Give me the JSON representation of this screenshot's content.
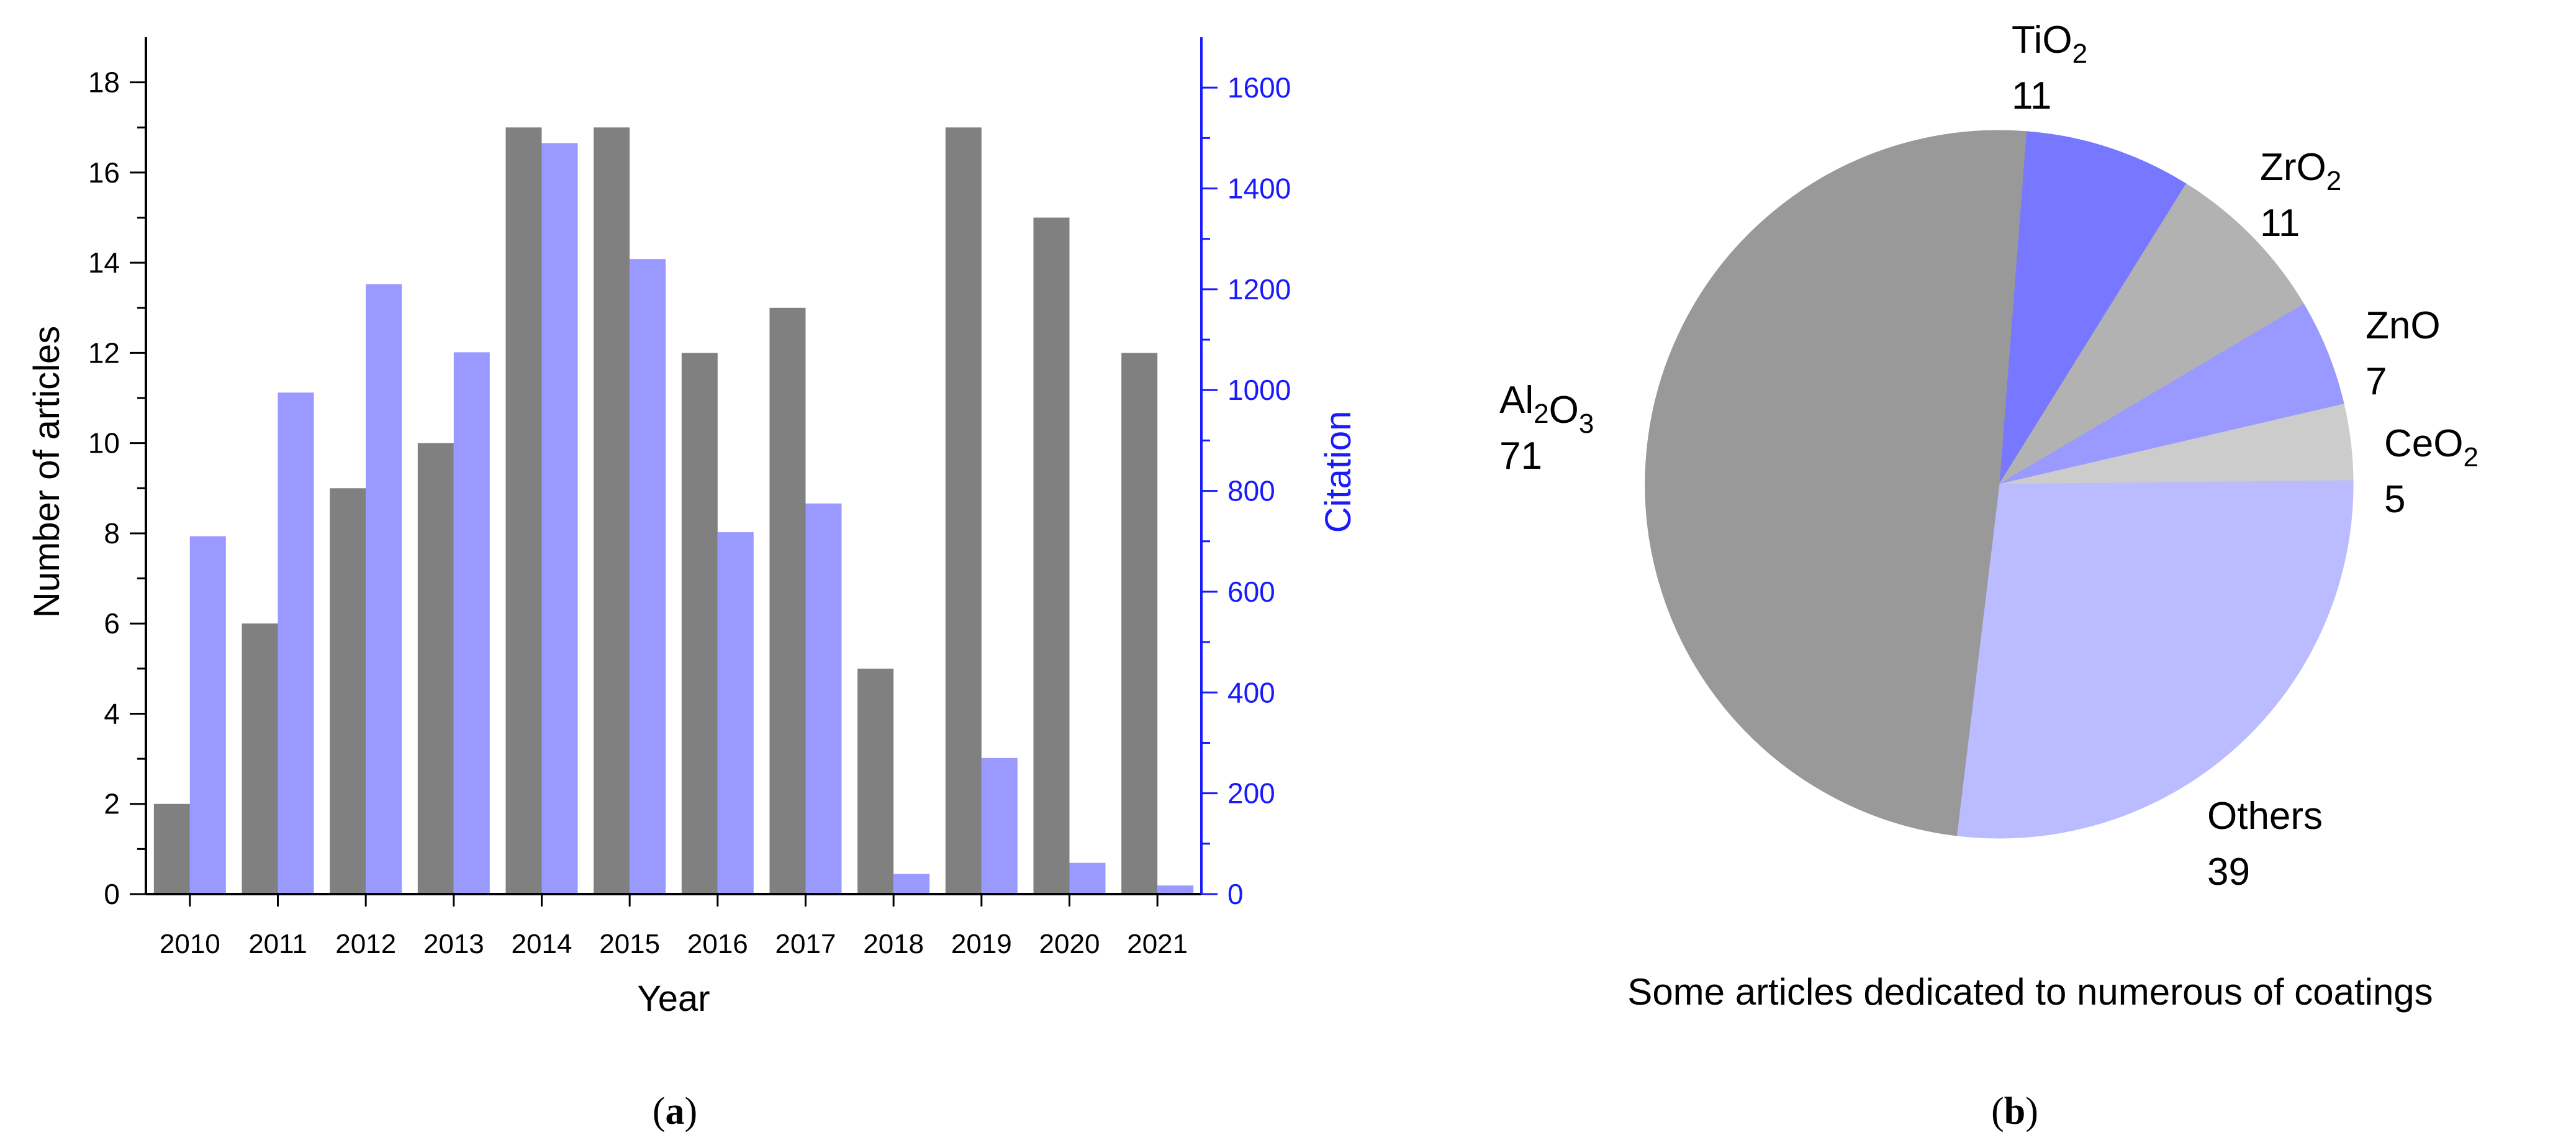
{
  "chart_data": [
    {
      "type": "bar",
      "panel_label": "a",
      "xlabel": "Year",
      "categories": [
        "2010",
        "2011",
        "2012",
        "2013",
        "2014",
        "2015",
        "2016",
        "2017",
        "2018",
        "2019",
        "2020",
        "2021"
      ],
      "series": [
        {
          "values": [
            2,
            6,
            9,
            10,
            17,
            17,
            12,
            13,
            5,
            17,
            15,
            12
          ],
          "axis": "left",
          "color": "#808080"
        },
        {
          "values": [
            710,
            995,
            1210,
            1075,
            1490,
            1260,
            718,
            775,
            40,
            270,
            62,
            17
          ],
          "axis": "right",
          "color": "#9999ff"
        }
      ],
      "y_left": {
        "label": "Number of articles",
        "lim": [
          0,
          19
        ],
        "ticks": [
          "0",
          "2",
          "4",
          "6",
          "8",
          "10",
          "12",
          "14",
          "16",
          "18"
        ]
      },
      "y_right": {
        "label": "Citation",
        "lim": [
          0,
          1700
        ],
        "ticks": [
          "0",
          "200",
          "400",
          "600",
          "800",
          "1000",
          "1200",
          "1400",
          "1600"
        ],
        "color": "#1a1aff"
      },
      "grid": false,
      "legend": "none"
    },
    {
      "type": "pie",
      "panel_label": "b",
      "caption": "Some articles dedicated to numerous of coatings",
      "slices": [
        {
          "base": "TiO",
          "sub": "2",
          "value": 11,
          "color": "#7777ff"
        },
        {
          "base": "ZrO",
          "sub": "2",
          "value": 11,
          "color": "#b2b2b2"
        },
        {
          "base": "ZnO",
          "sub": "",
          "value": 7,
          "color": "#9999ff"
        },
        {
          "base": "CeO",
          "sub": "2",
          "value": 5,
          "color": "#cccccc"
        },
        {
          "base": "Others",
          "sub": "",
          "value": 39,
          "color": "#bbbbff"
        },
        {
          "base": "Al",
          "sub": "2",
          "base2": "O",
          "sub2": "3",
          "value": 71,
          "color": "#999999"
        }
      ],
      "start_angle_deg": 4.4
    }
  ]
}
